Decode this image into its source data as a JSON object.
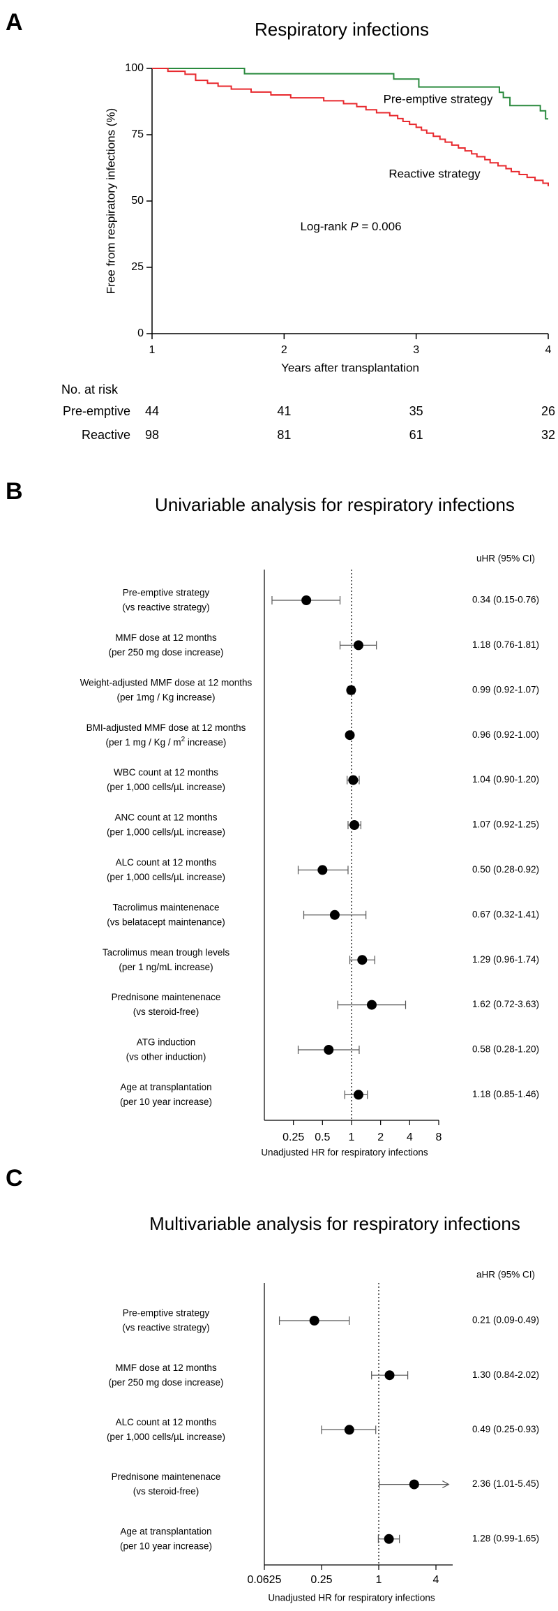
{
  "chart_data": [
    {
      "type": "km",
      "panel": "A",
      "title": "Respiratory infections",
      "xlabel": "Years after transplantation",
      "ylabel": "Free from respiratory infections (%)",
      "xlim": [
        1,
        4
      ],
      "ylim": [
        0,
        100
      ],
      "xticks": [
        1,
        2,
        3,
        4
      ],
      "yticks": [
        0,
        25,
        50,
        75,
        100
      ],
      "series": [
        {
          "name": "Pre-emptive strategy",
          "color": "#2a8a3e",
          "x": [
            1,
            1.7,
            2.83,
            3.02,
            3.63,
            3.66,
            3.71,
            3.94,
            3.98,
            4
          ],
          "values": [
            100,
            98,
            96,
            93,
            91,
            89,
            86,
            84,
            81,
            81
          ]
        },
        {
          "name": "Reactive strategy",
          "color": "#e8292e",
          "x": [
            1,
            1.12,
            1.25,
            1.33,
            1.42,
            1.5,
            1.6,
            1.75,
            1.9,
            2.05,
            2.3,
            2.45,
            2.55,
            2.62,
            2.7,
            2.8,
            2.86,
            2.9,
            2.95,
            3.0,
            3.04,
            3.08,
            3.13,
            3.18,
            3.22,
            3.27,
            3.32,
            3.37,
            3.42,
            3.46,
            3.52,
            3.56,
            3.62,
            3.68,
            3.72,
            3.78,
            3.84,
            3.9,
            3.96,
            4
          ],
          "values": [
            100,
            98.9,
            97.8,
            95.5,
            94.4,
            93.3,
            92.2,
            91.1,
            90,
            88.9,
            87.8,
            86.7,
            85.6,
            84.4,
            83.3,
            82.2,
            81.1,
            80,
            78.9,
            77.8,
            76.7,
            75.6,
            74.4,
            73.3,
            72.2,
            71.1,
            70,
            68.9,
            67.8,
            66.7,
            65.6,
            64.4,
            63.3,
            62.2,
            61.1,
            60,
            58.9,
            57.8,
            56.7,
            55.6
          ]
        }
      ],
      "annotation": [
        "Log-rank ",
        "P",
        " = 0.006"
      ],
      "risk_table": {
        "title": "No. at risk",
        "rows": [
          {
            "name": "Pre-emptive",
            "color": "#2a8a3e",
            "values": [
              44,
              41,
              35,
              26
            ]
          },
          {
            "name": "Reactive",
            "color": "#e8292e",
            "values": [
              98,
              81,
              61,
              32
            ]
          }
        ]
      }
    },
    {
      "type": "forest",
      "panel": "B",
      "title": "Univariable analysis for respiratory infections",
      "column_header": "uHR (95% CI)",
      "xlabel": "Unadjusted HR for respiratory infections",
      "log_x": true,
      "xlim": [
        0.125,
        8
      ],
      "xticks": [
        0.25,
        0.5,
        1,
        2,
        4,
        8
      ],
      "reference_line": 1,
      "color": "#000000",
      "categories": [
        [
          "Pre-emptive strategy",
          "(vs reactive strategy)"
        ],
        [
          "MMF dose at 12 months",
          "(per 250 mg dose increase)"
        ],
        [
          "Weight-adjusted MMF dose at 12 months",
          "(per 1mg / Kg increase)"
        ],
        [
          "BMI-adjusted MMF dose at 12 months",
          [
            "(per 1 mg / Kg / m",
            "2",
            " increase)"
          ]
        ],
        [
          "WBC count at 12 months",
          "(per 1,000 cells/µL increase)"
        ],
        [
          "ANC count at 12 months",
          "(per 1,000 cells/µL increase)"
        ],
        [
          "ALC count at 12 months",
          "(per 1,000 cells/µL increase)"
        ],
        [
          "Tacrolimus maintenenace",
          "(vs belatacept maintenance)"
        ],
        [
          "Tacrolimus mean trough levels",
          "(per 1 ng/mL increase)"
        ],
        [
          "Prednisone maintenenace",
          "(vs steroid-free)"
        ],
        [
          "ATG induction",
          "(vs other induction)"
        ],
        [
          "Age at transplantation",
          "(per 10 year increase)"
        ]
      ],
      "values": [
        0.34,
        1.18,
        0.99,
        0.96,
        1.04,
        1.07,
        0.5,
        0.67,
        1.29,
        1.62,
        0.58,
        1.18
      ],
      "lower": [
        0.15,
        0.76,
        0.92,
        0.92,
        0.9,
        0.92,
        0.28,
        0.32,
        0.96,
        0.72,
        0.28,
        0.85
      ],
      "upper": [
        0.76,
        1.81,
        1.07,
        1.0,
        1.2,
        1.25,
        0.92,
        1.41,
        1.74,
        3.63,
        1.2,
        1.46
      ],
      "value_labels": [
        "0.34 (0.15-0.76)",
        "1.18 (0.76-1.81)",
        "0.99 (0.92-1.07)",
        "0.96 (0.92-1.00)",
        "1.04 (0.90-1.20)",
        "1.07 (0.92-1.25)",
        "0.50 (0.28-0.92)",
        "0.67 (0.32-1.41)",
        "1.29 (0.96-1.74)",
        "1.62 (0.72-3.63)",
        "0.58 (0.28-1.20)",
        "1.18 (0.85-1.46)"
      ]
    },
    {
      "type": "forest",
      "panel": "C",
      "title": "Multivariable analysis for respiratory infections",
      "column_header": "aHR (95% CI)",
      "xlabel": "Unadjusted HR for respiratory infections",
      "log_x": true,
      "xlim": [
        0.0625,
        6
      ],
      "xticks": [
        0.0625,
        0.25,
        1,
        4
      ],
      "reference_line": 1,
      "color": "#000000",
      "categories": [
        [
          "Pre-emptive strategy",
          "(vs reactive strategy)"
        ],
        [
          "MMF dose at 12 months",
          "(per 250 mg dose increase)"
        ],
        [
          "ALC count at 12 months",
          "(per 1,000 cells/µL increase)"
        ],
        [
          "Prednisone maintenenace",
          "(vs steroid-free)"
        ],
        [
          "Age at transplantation",
          "(per 10 year increase)"
        ]
      ],
      "values": [
        0.21,
        1.3,
        0.49,
        2.36,
        1.28
      ],
      "lower": [
        0.09,
        0.84,
        0.25,
        1.01,
        0.99
      ],
      "upper": [
        0.49,
        2.02,
        0.93,
        5.45,
        1.65
      ],
      "value_labels": [
        "0.21 (0.09-0.49)",
        "1.30 (0.84-2.02)",
        "0.49 (0.25-0.93)",
        "2.36 (1.01-5.45)",
        "1.28 (0.99-1.65)"
      ]
    }
  ]
}
